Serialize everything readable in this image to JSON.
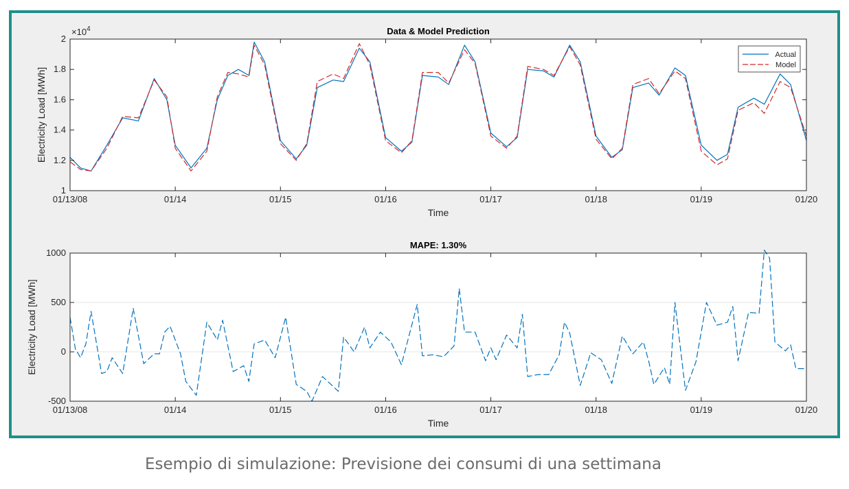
{
  "caption": "Esempio di simulazione: Previsione dei consumi di una settimana",
  "colors": {
    "frame": "#1f8f8a",
    "actual": "#0072bd",
    "model": "#d62728"
  },
  "chart_data": [
    {
      "type": "line",
      "title": "Data & Model Prediction",
      "xlabel": "Time",
      "ylabel": "Electricity Load [MWh]",
      "y_exponent_label": "×10",
      "y_exponent_power": "4",
      "x_ticks": [
        "01/13/08",
        "01/14",
        "01/15",
        "01/16",
        "01/17",
        "01/18",
        "01/19",
        "01/20"
      ],
      "y_ticks": [
        "1",
        "1.2",
        "1.4",
        "1.6",
        "1.8",
        "2"
      ],
      "xlim": [
        0,
        7
      ],
      "ylim": [
        1.0,
        2.0
      ],
      "legend_position": "top-right",
      "series": [
        {
          "name": "Actual",
          "style": "solid",
          "x": [
            0,
            0.1,
            0.2,
            0.35,
            0.5,
            0.65,
            0.8,
            0.92,
            1.0,
            1.15,
            1.3,
            1.4,
            1.5,
            1.6,
            1.7,
            1.75,
            1.85,
            2.0,
            2.15,
            2.25,
            2.35,
            2.5,
            2.6,
            2.75,
            2.85,
            3.0,
            3.15,
            3.25,
            3.35,
            3.5,
            3.6,
            3.75,
            3.85,
            4.0,
            4.15,
            4.25,
            4.35,
            4.5,
            4.6,
            4.75,
            4.85,
            5.0,
            5.15,
            5.25,
            5.35,
            5.5,
            5.6,
            5.75,
            5.85,
            6.0,
            6.15,
            6.25,
            6.35,
            6.5,
            6.6,
            6.75,
            6.85,
            7.0
          ],
          "y": [
            1.22,
            1.15,
            1.13,
            1.3,
            1.48,
            1.46,
            1.74,
            1.6,
            1.3,
            1.15,
            1.28,
            1.6,
            1.76,
            1.8,
            1.76,
            1.98,
            1.85,
            1.33,
            1.21,
            1.3,
            1.68,
            1.73,
            1.72,
            1.94,
            1.85,
            1.35,
            1.26,
            1.32,
            1.76,
            1.75,
            1.7,
            1.96,
            1.85,
            1.38,
            1.29,
            1.35,
            1.8,
            1.79,
            1.75,
            1.96,
            1.85,
            1.36,
            1.22,
            1.27,
            1.68,
            1.71,
            1.63,
            1.81,
            1.76,
            1.3,
            1.2,
            1.24,
            1.55,
            1.61,
            1.57,
            1.77,
            1.7,
            1.33
          ]
        },
        {
          "name": "Model",
          "style": "dashed",
          "x": [
            0,
            0.1,
            0.2,
            0.35,
            0.5,
            0.65,
            0.8,
            0.92,
            1.0,
            1.15,
            1.3,
            1.4,
            1.5,
            1.6,
            1.7,
            1.75,
            1.85,
            2.0,
            2.15,
            2.25,
            2.35,
            2.5,
            2.6,
            2.75,
            2.85,
            3.0,
            3.15,
            3.25,
            3.35,
            3.5,
            3.6,
            3.75,
            3.85,
            4.0,
            4.15,
            4.25,
            4.35,
            4.5,
            4.6,
            4.75,
            4.85,
            5.0,
            5.15,
            5.25,
            5.35,
            5.5,
            5.6,
            5.75,
            5.85,
            6.0,
            6.15,
            6.25,
            6.35,
            6.5,
            6.6,
            6.75,
            6.85,
            7.0
          ],
          "y": [
            1.19,
            1.14,
            1.13,
            1.28,
            1.49,
            1.48,
            1.73,
            1.62,
            1.28,
            1.13,
            1.26,
            1.62,
            1.78,
            1.77,
            1.75,
            1.96,
            1.83,
            1.31,
            1.2,
            1.31,
            1.72,
            1.77,
            1.74,
            1.97,
            1.83,
            1.33,
            1.25,
            1.33,
            1.78,
            1.78,
            1.71,
            1.93,
            1.84,
            1.36,
            1.28,
            1.36,
            1.82,
            1.8,
            1.76,
            1.95,
            1.83,
            1.34,
            1.21,
            1.28,
            1.7,
            1.74,
            1.64,
            1.79,
            1.74,
            1.26,
            1.17,
            1.21,
            1.53,
            1.58,
            1.51,
            1.72,
            1.68,
            1.36
          ]
        }
      ]
    },
    {
      "type": "line",
      "title": "MAPE: 1.30%",
      "xlabel": "Time",
      "ylabel": "Electricity Load [MWh]",
      "x_ticks": [
        "01/13/08",
        "01/14",
        "01/15",
        "01/16",
        "01/17",
        "01/18",
        "01/19",
        "01/20"
      ],
      "y_ticks": [
        "-500",
        "0",
        "500",
        "1000"
      ],
      "xlim": [
        0,
        7
      ],
      "ylim": [
        -500,
        1000
      ],
      "series": [
        {
          "style": "dashed",
          "x": [
            0,
            0.05,
            0.1,
            0.15,
            0.2,
            0.3,
            0.35,
            0.4,
            0.5,
            0.6,
            0.7,
            0.8,
            0.85,
            0.9,
            0.95,
            1.05,
            1.1,
            1.2,
            1.3,
            1.4,
            1.45,
            1.55,
            1.65,
            1.7,
            1.75,
            1.85,
            1.95,
            2.05,
            2.15,
            2.25,
            2.3,
            2.4,
            2.55,
            2.6,
            2.7,
            2.8,
            2.85,
            2.95,
            3.05,
            3.15,
            3.3,
            3.35,
            3.45,
            3.55,
            3.65,
            3.7,
            3.75,
            3.85,
            3.95,
            4.0,
            4.05,
            4.15,
            4.25,
            4.3,
            4.35,
            4.45,
            4.55,
            4.65,
            4.7,
            4.75,
            4.85,
            4.95,
            5.05,
            5.15,
            5.25,
            5.35,
            5.45,
            5.5,
            5.55,
            5.65,
            5.7,
            5.75,
            5.85,
            5.95,
            6.05,
            6.15,
            6.25,
            6.3,
            6.35,
            6.45,
            6.55,
            6.6,
            6.65,
            6.7,
            6.8,
            6.85,
            6.9,
            7.0
          ],
          "y": [
            350,
            30,
            -60,
            80,
            410,
            -220,
            -200,
            -60,
            -220,
            440,
            -120,
            -20,
            -20,
            200,
            260,
            -20,
            -300,
            -440,
            300,
            120,
            320,
            -200,
            -140,
            -300,
            80,
            120,
            -60,
            350,
            -330,
            -400,
            -500,
            -250,
            -400,
            150,
            0,
            250,
            40,
            200,
            100,
            -130,
            480,
            -40,
            -30,
            -50,
            60,
            640,
            200,
            200,
            -90,
            40,
            -80,
            170,
            40,
            380,
            -250,
            -230,
            -230,
            -30,
            300,
            190,
            -340,
            -10,
            -80,
            -320,
            160,
            -20,
            100,
            -90,
            -330,
            -160,
            -330,
            500,
            -390,
            -100,
            500,
            270,
            300,
            460,
            -90,
            400,
            390,
            1030,
            950,
            100,
            10,
            70,
            -170,
            -170
          ]
        }
      ]
    }
  ]
}
